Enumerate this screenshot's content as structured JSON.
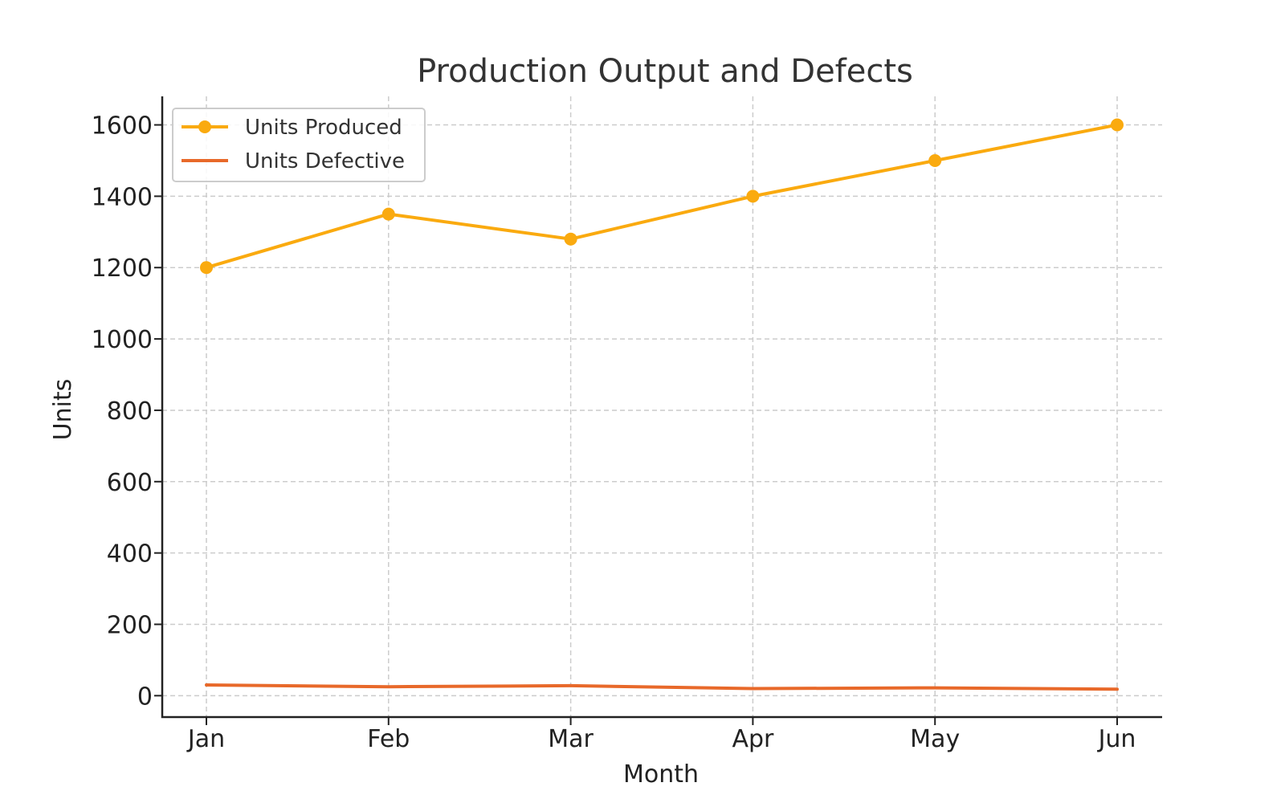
{
  "chart_data": {
    "type": "line",
    "title": "Production Output and Defects",
    "xlabel": "Month",
    "ylabel": "Units",
    "categories": [
      "Jan",
      "Feb",
      "Mar",
      "Apr",
      "May",
      "Jun"
    ],
    "yticks": [
      0,
      200,
      400,
      600,
      800,
      1000,
      1200,
      1400,
      1600
    ],
    "ylim": [
      -60,
      1680
    ],
    "grid": true,
    "legend": "top-left",
    "series": [
      {
        "name": "Units Produced",
        "values": [
          1200,
          1350,
          1280,
          1400,
          1500,
          1600
        ],
        "color": "#FAAA0F",
        "markers": true
      },
      {
        "name": "Units Defective",
        "values": [
          30,
          25,
          28,
          20,
          22,
          18
        ],
        "color": "#E8692A",
        "markers": false
      }
    ]
  }
}
